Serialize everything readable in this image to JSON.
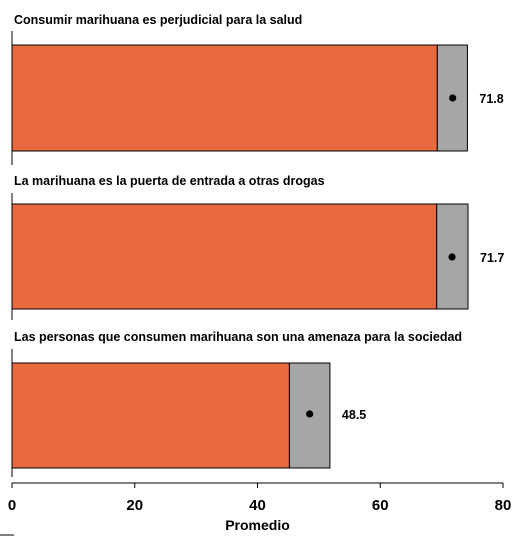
{
  "chart_data": {
    "type": "bar",
    "orientation": "horizontal",
    "xlabel": "Promedio",
    "xlim": [
      0,
      80
    ],
    "xticks": [
      0,
      20,
      40,
      60,
      80
    ],
    "colors": {
      "bar": "#E8693F",
      "interval": "#A6A6A6",
      "point": "#000000"
    },
    "categories": [
      "Consumir marihuana es perjudicial para la salud",
      "La marihuana es la puerta de entrada a otras drogas",
      "Las personas que consumen marihuana son una amenaza para la sociedad"
    ],
    "values": [
      71.8,
      71.7,
      48.5
    ],
    "value_labels": [
      "71.8",
      "71.7",
      "48.5"
    ],
    "interval_low": [
      69.3,
      69.2,
      45.2
    ],
    "interval_high": [
      74.2,
      74.3,
      51.8
    ]
  }
}
